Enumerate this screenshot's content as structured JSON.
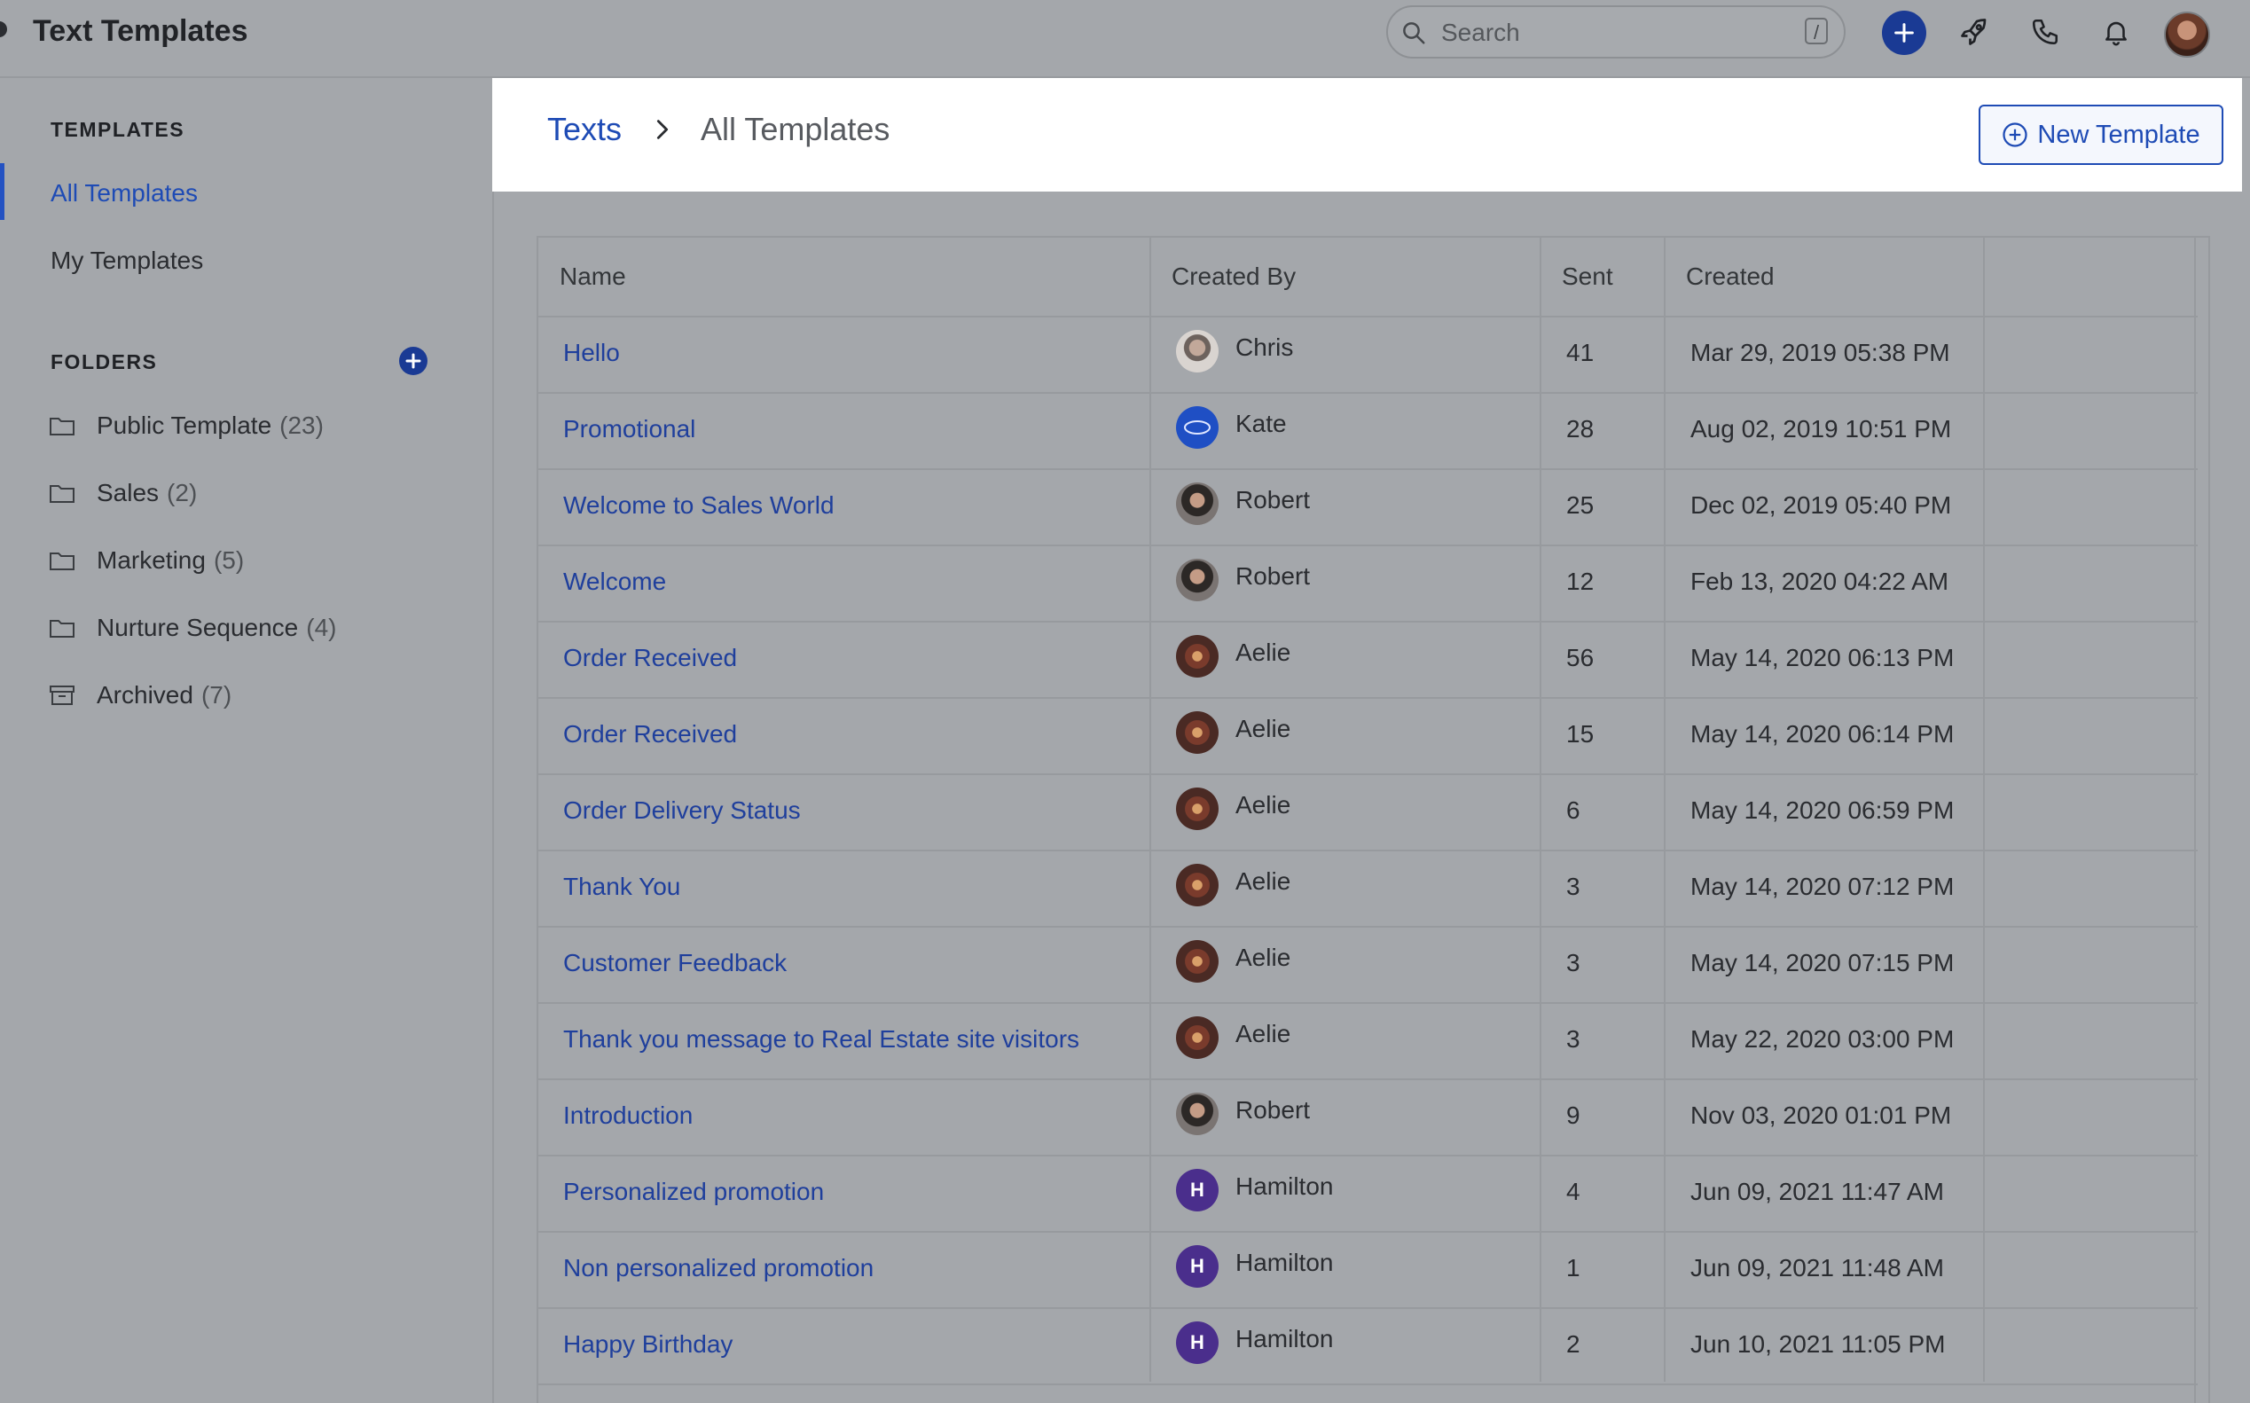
{
  "app": {
    "title": "Text Templates"
  },
  "search": {
    "placeholder": "Search",
    "shortcut": "/"
  },
  "topbar_icons": [
    "plus-icon",
    "rocket-icon",
    "phone-icon",
    "bell-icon",
    "user-avatar"
  ],
  "sidebar": {
    "templates_heading": "TEMPLATES",
    "templates": [
      {
        "label": "All Templates",
        "active": true
      },
      {
        "label": "My Templates",
        "active": false
      }
    ],
    "folders_heading": "FOLDERS",
    "folders": [
      {
        "label": "Public Template",
        "count": "(23)",
        "icon": "folder-icon"
      },
      {
        "label": "Sales",
        "count": "(2)",
        "icon": "folder-icon"
      },
      {
        "label": "Marketing",
        "count": "(5)",
        "icon": "folder-icon"
      },
      {
        "label": "Nurture Sequence",
        "count": "(4)",
        "icon": "folder-icon"
      },
      {
        "label": "Archived",
        "count": "(7)",
        "icon": "archive-icon"
      }
    ]
  },
  "header": {
    "breadcrumb_root": "Texts",
    "breadcrumb_current": "All Templates",
    "new_template_label": "New Template"
  },
  "table": {
    "columns": {
      "name": "Name",
      "created_by": "Created By",
      "sent": "Sent",
      "created": "Created"
    },
    "rows": [
      {
        "name": "Hello",
        "created_by": "Chris",
        "sent": "41",
        "created": "Mar 29, 2019 05:38 PM",
        "avatar": "chris"
      },
      {
        "name": "Promotional",
        "created_by": "Kate",
        "sent": "28",
        "created": "Aug 02, 2019 10:51 PM",
        "avatar": "kate"
      },
      {
        "name": "Welcome to Sales World",
        "created_by": "Robert",
        "sent": "25",
        "created": "Dec 02, 2019 05:40 PM",
        "avatar": "robert"
      },
      {
        "name": "Welcome",
        "created_by": "Robert",
        "sent": "12",
        "created": "Feb 13, 2020 04:22 AM",
        "avatar": "robert"
      },
      {
        "name": "Order Received",
        "created_by": "Aelie",
        "sent": "56",
        "created": "May 14, 2020 06:13 PM",
        "avatar": "aelie"
      },
      {
        "name": "Order Received",
        "created_by": "Aelie",
        "sent": "15",
        "created": "May 14, 2020 06:14 PM",
        "avatar": "aelie"
      },
      {
        "name": "Order Delivery Status",
        "created_by": "Aelie",
        "sent": "6",
        "created": "May 14, 2020 06:59 PM",
        "avatar": "aelie"
      },
      {
        "name": "Thank You",
        "created_by": "Aelie",
        "sent": "3",
        "created": "May 14, 2020 07:12 PM",
        "avatar": "aelie"
      },
      {
        "name": "Customer Feedback",
        "created_by": "Aelie",
        "sent": "3",
        "created": "May 14, 2020 07:15 PM",
        "avatar": "aelie"
      },
      {
        "name": "Thank you message to Real Estate site visitors",
        "created_by": "Aelie",
        "sent": "3",
        "created": "May 22, 2020 03:00 PM",
        "avatar": "aelie"
      },
      {
        "name": "Introduction",
        "created_by": "Robert",
        "sent": "9",
        "created": "Nov 03, 2020 01:01 PM",
        "avatar": "robert"
      },
      {
        "name": "Personalized promotion",
        "created_by": "Hamilton",
        "sent": "4",
        "created": "Jun 09, 2021 11:47 AM",
        "avatar": "hamilton",
        "initial": "H"
      },
      {
        "name": "Non personalized promotion",
        "created_by": "Hamilton",
        "sent": "1",
        "created": "Jun 09, 2021 11:48 AM",
        "avatar": "hamilton",
        "initial": "H"
      },
      {
        "name": "Happy Birthday",
        "created_by": "Hamilton",
        "sent": "2",
        "created": "Jun 10, 2021 11:05 PM",
        "avatar": "hamilton",
        "initial": "H"
      }
    ]
  },
  "colors": {
    "accent": "#1e4bb5",
    "link": "#1f3f9c",
    "overlay_bg": "#a4a7ab",
    "panel_bg": "#ffffff"
  }
}
